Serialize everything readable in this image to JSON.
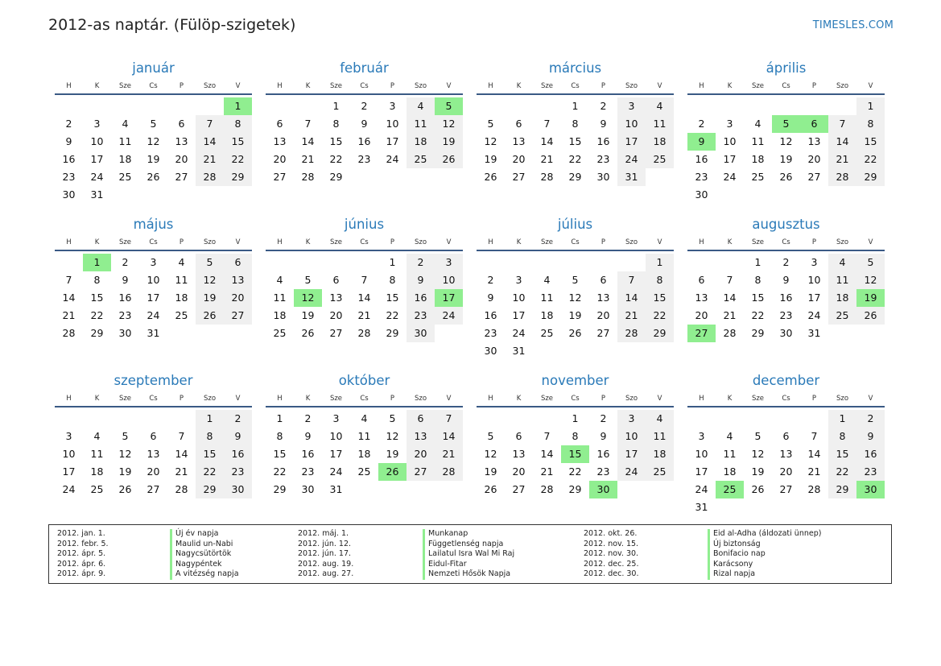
{
  "header": {
    "title": "2012-as naptár. (Fülöp-szigetek)",
    "site": "TIMESLES.COM"
  },
  "colors": {
    "accent": "#2a7ab8",
    "holiday": "#90ee90",
    "weekend": "#f0f0f0",
    "rule": "#3a5a85"
  },
  "weekdays": [
    "H",
    "K",
    "Sze",
    "Cs",
    "P",
    "Szo",
    "V"
  ],
  "months": [
    {
      "name": "január",
      "offset": 6,
      "days": 31,
      "holidays": [
        1
      ]
    },
    {
      "name": "február",
      "offset": 2,
      "days": 29,
      "holidays": [
        5
      ]
    },
    {
      "name": "március",
      "offset": 3,
      "days": 31,
      "holidays": []
    },
    {
      "name": "április",
      "offset": 6,
      "days": 30,
      "holidays": [
        5,
        6,
        9
      ]
    },
    {
      "name": "május",
      "offset": 1,
      "days": 31,
      "holidays": [
        1
      ]
    },
    {
      "name": "június",
      "offset": 4,
      "days": 30,
      "holidays": [
        12,
        17
      ]
    },
    {
      "name": "július",
      "offset": 6,
      "days": 31,
      "holidays": []
    },
    {
      "name": "augusztus",
      "offset": 2,
      "days": 31,
      "holidays": [
        19,
        27
      ]
    },
    {
      "name": "szeptember",
      "offset": 5,
      "days": 30,
      "holidays": []
    },
    {
      "name": "október",
      "offset": 0,
      "days": 31,
      "holidays": [
        26
      ]
    },
    {
      "name": "november",
      "offset": 3,
      "days": 30,
      "holidays": [
        15,
        30
      ]
    },
    {
      "name": "december",
      "offset": 5,
      "days": 31,
      "holidays": [
        25,
        30
      ]
    }
  ],
  "legend": {
    "columns": [
      {
        "dates": [
          "2012. jan. 1.",
          "2012. febr. 5.",
          "2012. ápr. 5.",
          "2012. ápr. 6.",
          "2012. ápr. 9."
        ],
        "names": [
          "Új év napja",
          "Maulid un-Nabi",
          "Nagycsütörtök",
          "Nagypéntek",
          "A vitézség napja"
        ]
      },
      {
        "dates": [
          "2012. máj. 1.",
          "2012. jún. 12.",
          "2012. jún. 17.",
          "2012. aug. 19.",
          "2012. aug. 27."
        ],
        "names": [
          "Munkanap",
          "Függetlenség napja",
          "Lailatul Isra Wal Mi Raj",
          "Eidul-Fitar",
          "Nemzeti Hősök Napja"
        ]
      },
      {
        "dates": [
          "2012. okt. 26.",
          "2012. nov. 15.",
          "2012. nov. 30.",
          "2012. dec. 25.",
          "2012. dec. 30."
        ],
        "names": [
          "Eid al-Adha (áldozati ünnep)",
          "Új biztonság",
          "Bonifacio nap",
          "Karácsony",
          "Rizal napja"
        ]
      }
    ]
  }
}
